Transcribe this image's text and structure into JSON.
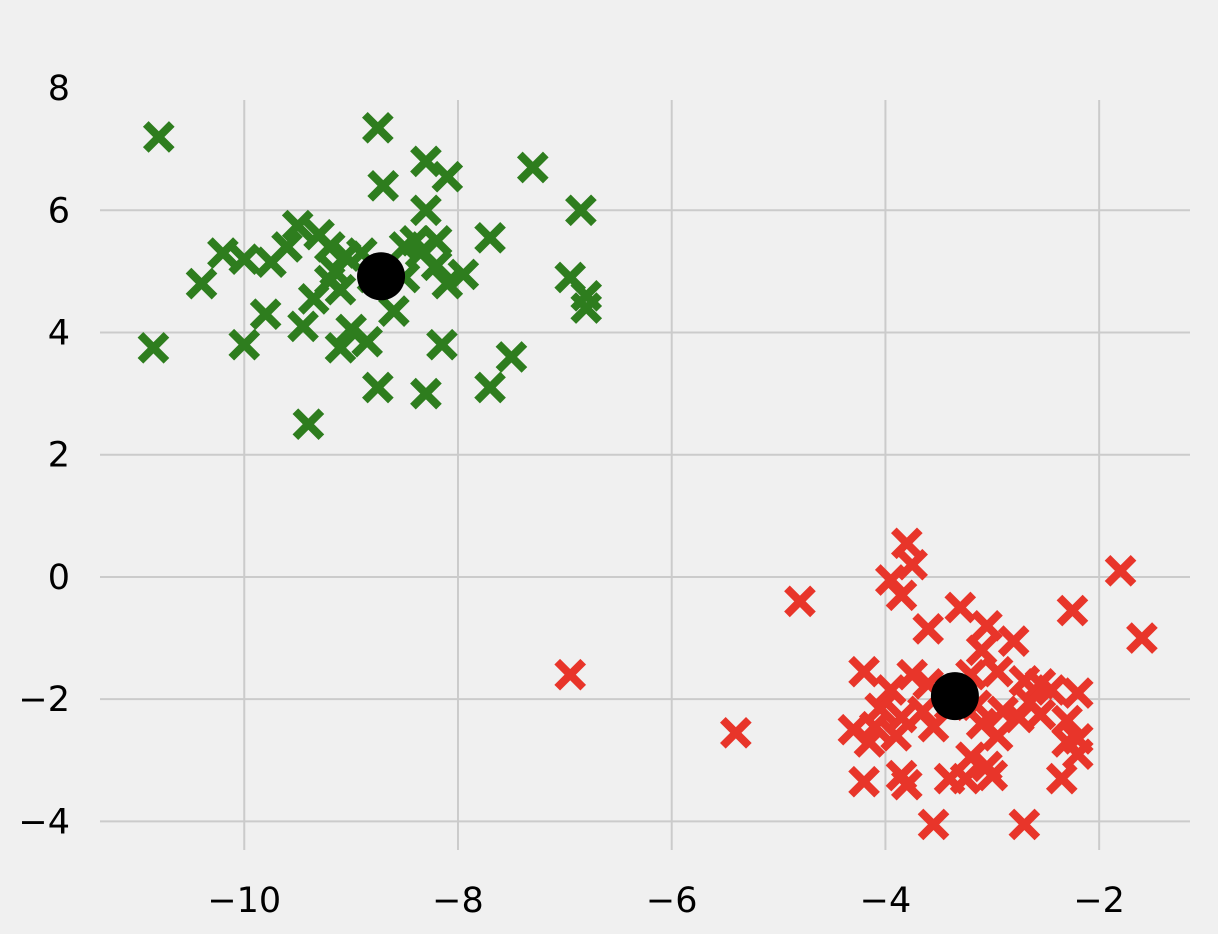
{
  "chart_data": {
    "type": "scatter",
    "title": "",
    "xlabel": "",
    "ylabel": "",
    "xlim": [
      -11.35,
      -1.15
    ],
    "ylim": [
      -4.55,
      8.05
    ],
    "xticks": [
      -10,
      -8,
      -6,
      -4,
      -2
    ],
    "xtick_labels": [
      "−10",
      "−8",
      "−6",
      "−4",
      "−2"
    ],
    "yticks": [
      -4,
      -2,
      0,
      2,
      4,
      6,
      8
    ],
    "ytick_labels": [
      "−4",
      "−2",
      "0",
      "2",
      "4",
      "6",
      "8"
    ],
    "grid": true,
    "marker": "x",
    "series": [
      {
        "color": "#2e7d1e",
        "points": [
          [
            -10.8,
            7.2
          ],
          [
            -8.75,
            7.35
          ],
          [
            -8.3,
            6.8
          ],
          [
            -8.1,
            6.55
          ],
          [
            -8.7,
            6.4
          ],
          [
            -7.3,
            6.7
          ],
          [
            -8.3,
            6.0
          ],
          [
            -6.85,
            6.0
          ],
          [
            -9.5,
            5.75
          ],
          [
            -9.3,
            5.6
          ],
          [
            -9.6,
            5.4
          ],
          [
            -9.75,
            5.15
          ],
          [
            -10.2,
            5.3
          ],
          [
            -10.0,
            5.2
          ],
          [
            -9.2,
            5.4
          ],
          [
            -9.05,
            5.25
          ],
          [
            -9.15,
            5.0
          ],
          [
            -8.9,
            5.3
          ],
          [
            -8.5,
            5.4
          ],
          [
            -8.4,
            5.5
          ],
          [
            -8.2,
            5.5
          ],
          [
            -8.35,
            5.3
          ],
          [
            -8.2,
            5.1
          ],
          [
            -7.95,
            4.95
          ],
          [
            -8.1,
            4.8
          ],
          [
            -8.5,
            4.9
          ],
          [
            -8.8,
            4.9
          ],
          [
            -9.2,
            4.85
          ],
          [
            -9.1,
            4.7
          ],
          [
            -9.35,
            4.55
          ],
          [
            -10.4,
            4.8
          ],
          [
            -9.8,
            4.3
          ],
          [
            -9.45,
            4.1
          ],
          [
            -9.0,
            4.05
          ],
          [
            -8.6,
            4.35
          ],
          [
            -8.85,
            3.85
          ],
          [
            -9.1,
            3.75
          ],
          [
            -10.0,
            3.8
          ],
          [
            -10.85,
            3.75
          ],
          [
            -8.15,
            3.8
          ],
          [
            -8.75,
            3.1
          ],
          [
            -8.3,
            3.0
          ],
          [
            -7.7,
            3.1
          ],
          [
            -7.5,
            3.6
          ],
          [
            -7.7,
            5.55
          ],
          [
            -6.95,
            4.9
          ],
          [
            -6.8,
            4.6
          ],
          [
            -6.8,
            4.4
          ],
          [
            -9.4,
            2.5
          ]
        ]
      },
      {
        "color": "#e8352a",
        "points": [
          [
            -3.8,
            0.55
          ],
          [
            -3.75,
            0.2
          ],
          [
            -3.95,
            -0.05
          ],
          [
            -3.85,
            -0.3
          ],
          [
            -3.6,
            -0.85
          ],
          [
            -3.3,
            -0.5
          ],
          [
            -3.05,
            -0.8
          ],
          [
            -2.8,
            -1.05
          ],
          [
            -3.1,
            -1.2
          ],
          [
            -4.8,
            -0.4
          ],
          [
            -1.8,
            0.1
          ],
          [
            -1.6,
            -1.0
          ],
          [
            -2.25,
            -0.55
          ],
          [
            -6.95,
            -1.6
          ],
          [
            -4.2,
            -1.55
          ],
          [
            -3.95,
            -1.85
          ],
          [
            -3.75,
            -1.6
          ],
          [
            -3.6,
            -1.75
          ],
          [
            -3.2,
            -1.6
          ],
          [
            -2.95,
            -1.55
          ],
          [
            -2.7,
            -1.7
          ],
          [
            -2.55,
            -1.75
          ],
          [
            -2.45,
            -1.85
          ],
          [
            -2.2,
            -1.9
          ],
          [
            -2.65,
            -2.05
          ],
          [
            -2.75,
            -2.3
          ],
          [
            -2.9,
            -2.2
          ],
          [
            -3.15,
            -2.1
          ],
          [
            -3.4,
            -2.1
          ],
          [
            -3.65,
            -2.2
          ],
          [
            -3.85,
            -2.3
          ],
          [
            -4.05,
            -2.15
          ],
          [
            -4.1,
            -2.45
          ],
          [
            -4.3,
            -2.5
          ],
          [
            -4.15,
            -2.7
          ],
          [
            -3.9,
            -2.6
          ],
          [
            -3.55,
            -2.45
          ],
          [
            -3.1,
            -2.4
          ],
          [
            -2.95,
            -2.6
          ],
          [
            -2.55,
            -2.25
          ],
          [
            -2.3,
            -2.35
          ],
          [
            -2.2,
            -2.65
          ],
          [
            -2.3,
            -2.7
          ],
          [
            -2.2,
            -2.9
          ],
          [
            -3.2,
            -2.95
          ],
          [
            -3.05,
            -3.1
          ],
          [
            -3.4,
            -3.3
          ],
          [
            -3.85,
            -3.25
          ],
          [
            -3.8,
            -3.4
          ],
          [
            -4.2,
            -3.35
          ],
          [
            -3.0,
            -3.25
          ],
          [
            -2.35,
            -3.3
          ],
          [
            -5.4,
            -2.55
          ],
          [
            -3.55,
            -4.05
          ],
          [
            -2.7,
            -4.05
          ],
          [
            -3.25,
            -3.3
          ]
        ]
      }
    ],
    "centroids": {
      "color": "#000000",
      "points": [
        [
          -8.72,
          4.92
        ],
        [
          -3.35,
          -1.95
        ]
      ]
    }
  }
}
